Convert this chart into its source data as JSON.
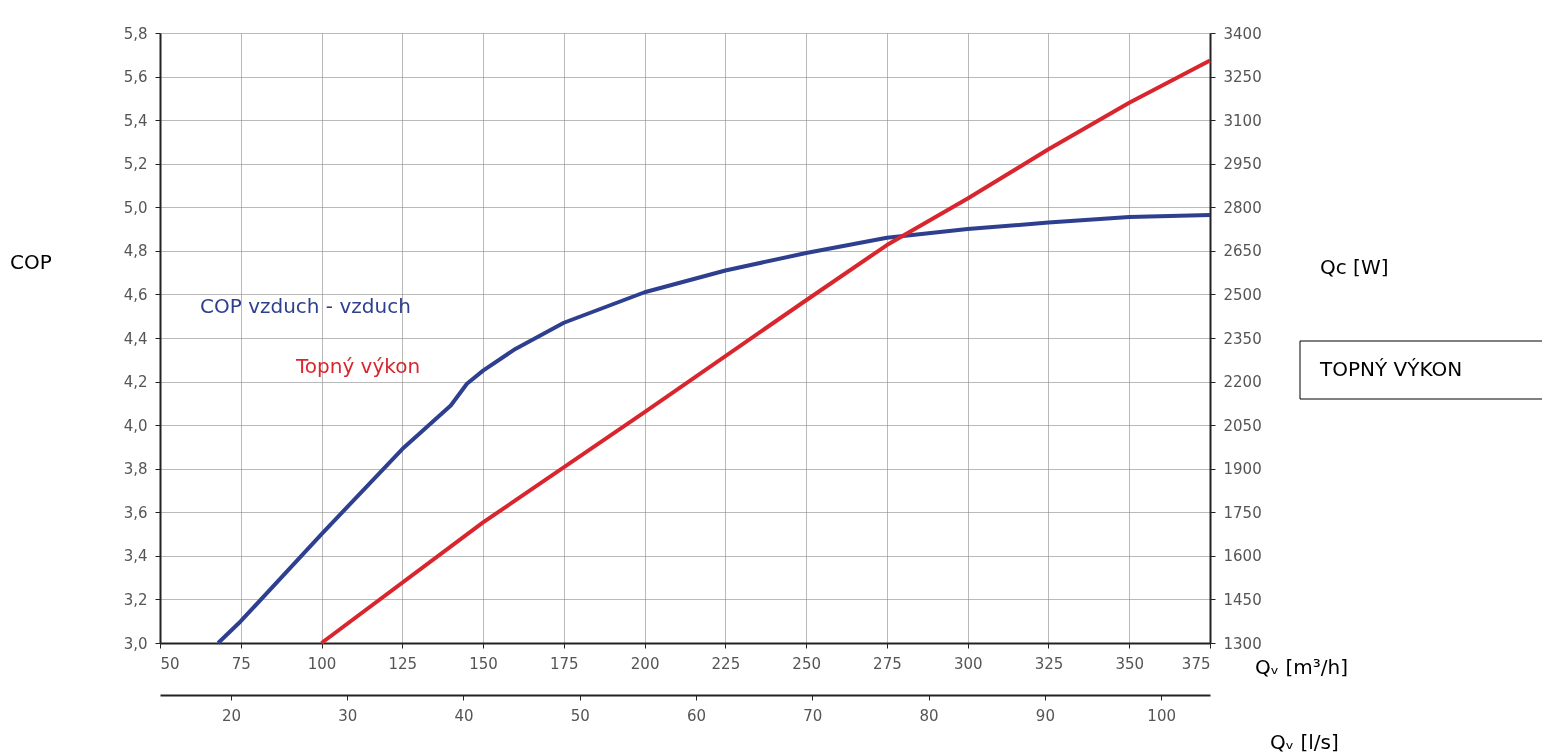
{
  "chart_data": {
    "type": "line",
    "xlabel": "Qᵥ [m³/h]",
    "x2label": "Qᵥ [l/s]",
    "ylabel": "COP",
    "y2label": "Qc [W]",
    "annotations": [
      "TOPNÝ VÝKON"
    ],
    "xlim": [
      50,
      375
    ],
    "xticks": [
      50,
      75,
      100,
      125,
      150,
      175,
      200,
      225,
      250,
      275,
      300,
      325,
      350,
      375
    ],
    "x2lim": [
      13.9,
      104.2
    ],
    "x2ticks": [
      20,
      30,
      40,
      50,
      60,
      70,
      80,
      90,
      100
    ],
    "ylim": [
      3.0,
      5.8
    ],
    "yticks": [
      {
        "value": 3.0,
        "label": "3,0"
      },
      {
        "value": 3.2,
        "label": "3,2"
      },
      {
        "value": 3.4,
        "label": "3,4"
      },
      {
        "value": 3.6,
        "label": "3,6"
      },
      {
        "value": 3.8,
        "label": "3,8"
      },
      {
        "value": 4.0,
        "label": "4,0"
      },
      {
        "value": 4.2,
        "label": "4,2"
      },
      {
        "value": 4.4,
        "label": "4,4"
      },
      {
        "value": 4.6,
        "label": "4,6"
      },
      {
        "value": 4.8,
        "label": "4,8"
      },
      {
        "value": 5.0,
        "label": "5,0"
      },
      {
        "value": 5.2,
        "label": "5,2"
      },
      {
        "value": 5.4,
        "label": "5,4"
      },
      {
        "value": 5.6,
        "label": "5,6"
      },
      {
        "value": 5.8,
        "label": "5,8"
      }
    ],
    "y2lim": [
      1300,
      3400
    ],
    "y2ticks": [
      1300,
      1450,
      1600,
      1750,
      1900,
      2050,
      2200,
      2350,
      2500,
      2650,
      2800,
      2950,
      3100,
      3250,
      3400
    ],
    "grid": true,
    "marker": "none",
    "line_style": "solid",
    "series": [
      {
        "name": "COP vzduch - vzduch",
        "color": "#2e3f8f",
        "x": [
          68,
          75,
          100,
          125,
          140,
          145,
          150,
          160,
          175,
          200,
          225,
          250,
          275,
          300,
          325,
          350,
          375
        ],
        "values": [
          3.0,
          3.1,
          3.5,
          3.89,
          4.09,
          4.19,
          4.25,
          4.35,
          4.47,
          4.61,
          4.71,
          4.79,
          4.86,
          4.9,
          4.93,
          4.955,
          4.965
        ]
      },
      {
        "name": "Topný výkon",
        "color": "#d9262e",
        "axis": "y2",
        "x": [
          100,
          150,
          200,
          250,
          275,
          300,
          325,
          350,
          375
        ],
        "values": [
          1300,
          1715,
          2095,
          2480,
          2670,
          2830,
          3000,
          3160,
          3305
        ]
      }
    ]
  }
}
